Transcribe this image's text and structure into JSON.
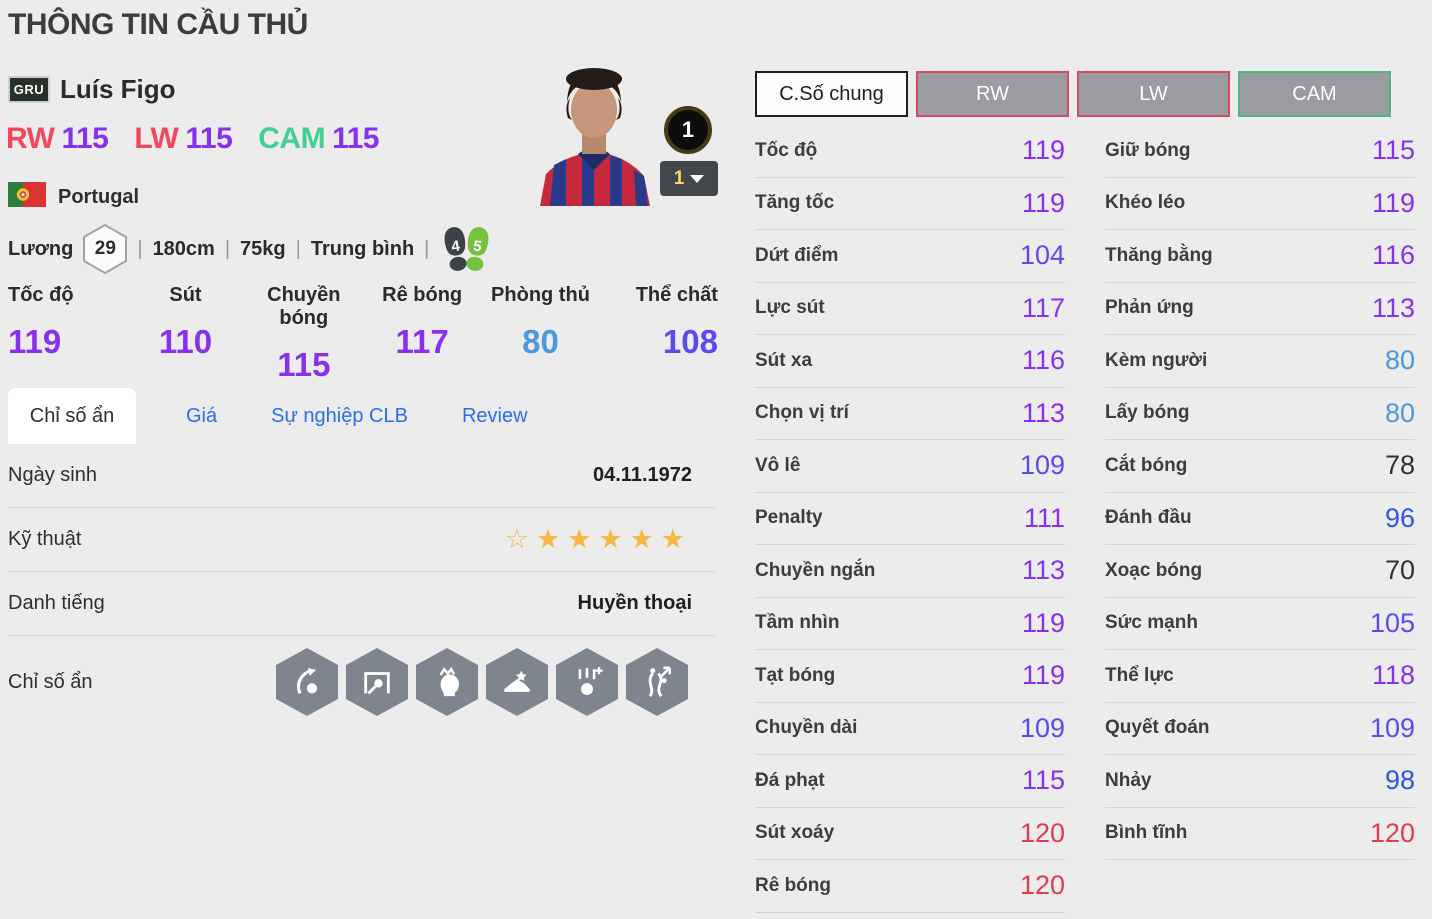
{
  "page": {
    "title": "THÔNG TIN CẦU THỦ"
  },
  "player": {
    "team_badge": "GRU",
    "name": "Luís Figo",
    "nation": "Portugal",
    "positions": [
      {
        "label": "RW",
        "rating": "115",
        "label_color": "#f2475f"
      },
      {
        "label": "LW",
        "rating": "115",
        "label_color": "#f2475f"
      },
      {
        "label": "CAM",
        "rating": "115",
        "label_color": "#41cf92"
      }
    ],
    "salary_label": "Lương",
    "salary": "29",
    "height": "180cm",
    "weight": "75kg",
    "body_type": "Trung bình",
    "weak_foot": "4",
    "skill_foot": "5",
    "level_badge": "1",
    "level_selected": "1"
  },
  "summary_stats": [
    {
      "label": "Tốc độ",
      "value": "119"
    },
    {
      "label": "Sút",
      "value": "110"
    },
    {
      "label": "Chuyền bóng",
      "value": "115"
    },
    {
      "label": "Rê bóng",
      "value": "117"
    },
    {
      "label": "Phòng thủ",
      "value": "80"
    },
    {
      "label": "Thể chất",
      "value": "108"
    }
  ],
  "tabs": [
    {
      "label": "Chỉ số ẩn",
      "active": true
    },
    {
      "label": "Giá",
      "active": false
    },
    {
      "label": "Sự nghiệp CLB",
      "active": false
    },
    {
      "label": "Review",
      "active": false
    }
  ],
  "details": {
    "birth_label": "Ngày sinh",
    "birth_value": "04.11.1972",
    "skill_label": "Kỹ thuật",
    "skill_stars_empty": 1,
    "skill_stars_filled": 5,
    "fame_label": "Danh tiếng",
    "fame_value": "Huyền thoại",
    "traits_label": "Chỉ số ẩn",
    "traits": [
      "curve-shot",
      "goal-net-shot",
      "flair-head",
      "power-boot",
      "rising-ball",
      "dribble-path"
    ]
  },
  "stat_buttons": [
    {
      "label": "C.Số chung",
      "style": "overall"
    },
    {
      "label": "RW",
      "style": "pos-red"
    },
    {
      "label": "LW",
      "style": "pos-red"
    },
    {
      "label": "CAM",
      "style": "pos-green"
    }
  ],
  "stats_left": [
    {
      "label": "Tốc độ",
      "value": "119"
    },
    {
      "label": "Tăng tốc",
      "value": "119"
    },
    {
      "label": "Dứt điểm",
      "value": "104"
    },
    {
      "label": "Lực sút",
      "value": "117"
    },
    {
      "label": "Sút xa",
      "value": "116"
    },
    {
      "label": "Chọn vị trí",
      "value": "113"
    },
    {
      "label": "Vô lê",
      "value": "109"
    },
    {
      "label": "Penalty",
      "value": "111"
    },
    {
      "label": "Chuyền ngắn",
      "value": "113"
    },
    {
      "label": "Tầm nhìn",
      "value": "119"
    },
    {
      "label": "Tạt bóng",
      "value": "119"
    },
    {
      "label": "Chuyền dài",
      "value": "109"
    },
    {
      "label": "Đá phạt",
      "value": "115"
    },
    {
      "label": "Sút xoáy",
      "value": "120"
    },
    {
      "label": "Rê bóng",
      "value": "120"
    }
  ],
  "stats_right": [
    {
      "label": "Giữ bóng",
      "value": "115"
    },
    {
      "label": "Khéo léo",
      "value": "119"
    },
    {
      "label": "Thăng bằng",
      "value": "116"
    },
    {
      "label": "Phản ứng",
      "value": "113"
    },
    {
      "label": "Kèm người",
      "value": "80"
    },
    {
      "label": "Lấy bóng",
      "value": "80"
    },
    {
      "label": "Cắt bóng",
      "value": "78"
    },
    {
      "label": "Đánh đầu",
      "value": "96"
    },
    {
      "label": "Xoạc bóng",
      "value": "70"
    },
    {
      "label": "Sức mạnh",
      "value": "105"
    },
    {
      "label": "Thể lực",
      "value": "118"
    },
    {
      "label": "Quyết đoán",
      "value": "109"
    },
    {
      "label": "Nhảy",
      "value": "98"
    },
    {
      "label": "Bình tĩnh",
      "value": "120"
    }
  ],
  "value_colors": {
    "red_120": "#e43a50",
    "purple_110": "#8531ee",
    "violet_100": "#5a4bf0",
    "blue_90": "#2d55e6",
    "lightblue_80": "#4c97de",
    "dark_low": "#2f3338"
  }
}
